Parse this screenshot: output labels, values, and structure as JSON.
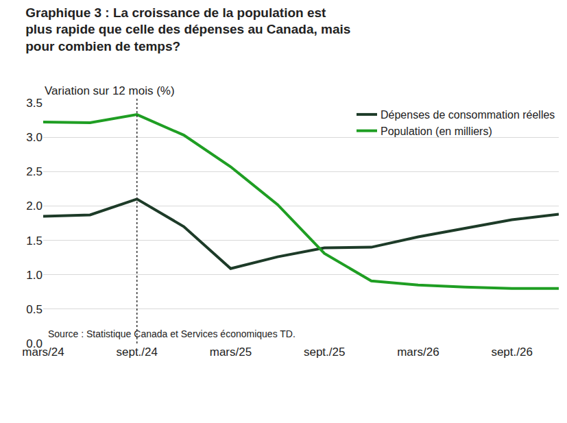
{
  "chart_data": {
    "type": "line",
    "title": "Graphique 3 : La croissance de la population est plus rapide que celle des dépenses au Canada, mais pour combien de temps?",
    "y_label": "Variation sur 12 mois (%)",
    "source": "Source : Statistique Canada et Services économiques TD.",
    "categories": [
      "mars/24",
      null,
      "sept./24",
      null,
      "mars/25",
      null,
      "sept./25",
      null,
      "mars/26",
      null,
      "sept./26",
      null
    ],
    "vline": "sept./24",
    "series": [
      {
        "name": "Dépenses de consommation réelles",
        "color": "#1d3b28",
        "values": [
          1.85,
          1.87,
          2.1,
          1.7,
          1.09,
          1.26,
          1.39,
          1.4,
          1.55,
          1.68,
          1.8,
          1.88
        ]
      },
      {
        "name": "Population (en milliers)",
        "color": "#1f9e23",
        "values": [
          3.22,
          3.21,
          3.33,
          3.03,
          2.57,
          2.02,
          1.31,
          0.91,
          0.85,
          0.82,
          0.8,
          0.8
        ]
      }
    ],
    "ylim": [
      0,
      3.5
    ],
    "yticks": [
      {
        "value": 0,
        "label": "0.0"
      },
      0.5,
      {
        "value": 1,
        "label": "1.0"
      },
      1.5,
      {
        "value": 2,
        "label": "2.0"
      },
      2.5,
      {
        "value": 3,
        "label": "3.0"
      },
      3.5
    ],
    "grid": true,
    "legend": "top-right"
  }
}
